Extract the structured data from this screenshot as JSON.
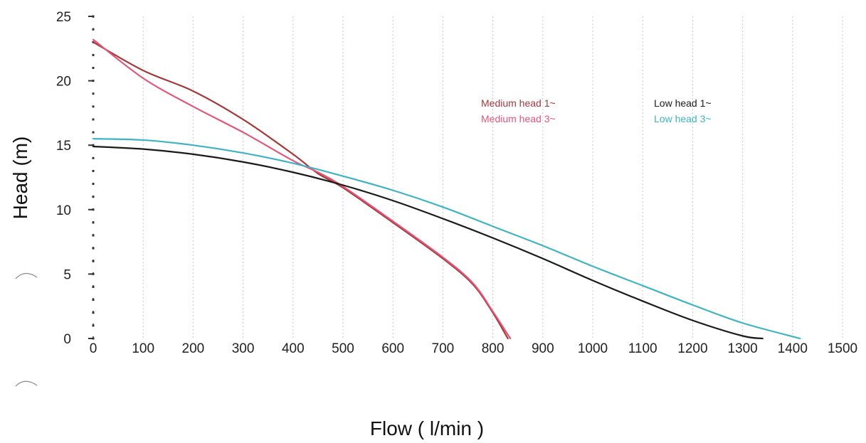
{
  "chart_data": {
    "type": "line",
    "title": "",
    "xlabel": "Flow ( l/min )",
    "ylabel": "Head (m)",
    "xlim": [
      0,
      1500
    ],
    "ylim": [
      0,
      25
    ],
    "x_ticks": [
      "0",
      "100",
      "200",
      "300",
      "400",
      "500",
      "600",
      "700",
      "800",
      "900",
      "1000",
      "1100",
      "1200",
      "1300",
      "1400",
      "1500"
    ],
    "y_ticks": [
      "0",
      "5",
      "10",
      "15",
      "20",
      "25"
    ],
    "grid": "vertical dotted",
    "legend_position": "top-right",
    "series": [
      {
        "name": "Medium head 1~",
        "color": "#a33a3a",
        "x": [
          0,
          100,
          200,
          300,
          400,
          450,
          500,
          600,
          700,
          760,
          800,
          830
        ],
        "y": [
          23,
          20.8,
          19.2,
          17.0,
          14.3,
          12.8,
          11.7,
          9.0,
          6.2,
          4.2,
          2.0,
          0
        ]
      },
      {
        "name": "Medium head 3~",
        "color": "#e0577a",
        "x": [
          0,
          100,
          200,
          300,
          400,
          450,
          500,
          600,
          700,
          760,
          800,
          835
        ],
        "y": [
          23.2,
          20.2,
          18.0,
          16.0,
          13.8,
          12.9,
          11.8,
          9.1,
          6.3,
          4.3,
          2.1,
          0
        ]
      },
      {
        "name": "Low head 1~",
        "color": "#1a1a1a",
        "x": [
          0,
          100,
          200,
          300,
          400,
          500,
          600,
          700,
          800,
          900,
          1000,
          1100,
          1200,
          1300,
          1340
        ],
        "y": [
          14.9,
          14.7,
          14.3,
          13.7,
          12.9,
          11.9,
          10.7,
          9.3,
          7.8,
          6.2,
          4.5,
          2.9,
          1.4,
          0.2,
          0
        ]
      },
      {
        "name": "Low head 3~",
        "color": "#3fb3c4",
        "x": [
          0,
          100,
          200,
          300,
          400,
          500,
          600,
          700,
          800,
          900,
          1000,
          1100,
          1200,
          1300,
          1415
        ],
        "y": [
          15.5,
          15.4,
          15.0,
          14.4,
          13.6,
          12.6,
          11.5,
          10.2,
          8.7,
          7.2,
          5.6,
          4.1,
          2.6,
          1.2,
          0
        ]
      }
    ]
  },
  "colors": {
    "axis": "#333333",
    "grid": "#c8c8c8",
    "background": "#ffffff"
  }
}
